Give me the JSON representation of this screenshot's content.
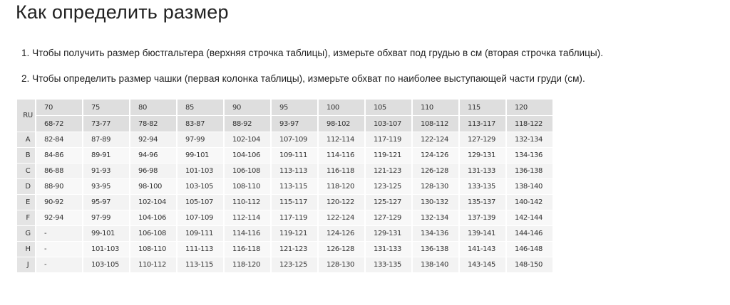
{
  "title": "Как определить размер",
  "steps": [
    "1. Чтобы получить размер бюстгальтера (верхняя строчка таблицы), измерьте обхват под грудью в см (вторая строчка таблицы).",
    "2. Чтобы определить размер чашки (первая колонка таблицы), измерьте обхват по наиболее выступающей части груди (см)."
  ],
  "table": {
    "corner": "RU",
    "sizes": [
      "70",
      "75",
      "80",
      "85",
      "90",
      "95",
      "100",
      "105",
      "110",
      "115",
      "120"
    ],
    "underbust": [
      "68-72",
      "73-77",
      "78-82",
      "83-87",
      "88-92",
      "93-97",
      "98-102",
      "103-107",
      "108-112",
      "113-117",
      "118-122"
    ],
    "rows": [
      {
        "cup": "A",
        "values": [
          "82-84",
          "87-89",
          "92-94",
          "97-99",
          "102-104",
          "107-109",
          "112-114",
          "117-119",
          "122-124",
          "127-129",
          "132-134"
        ]
      },
      {
        "cup": "B",
        "values": [
          "84-86",
          "89-91",
          "94-96",
          "99-101",
          "104-106",
          "109-111",
          "114-116",
          "119-121",
          "124-126",
          "129-131",
          "134-136"
        ]
      },
      {
        "cup": "C",
        "values": [
          "86-88",
          "91-93",
          "96-98",
          "101-103",
          "106-108",
          "113-113",
          "116-118",
          "121-123",
          "126-128",
          "131-133",
          "136-138"
        ]
      },
      {
        "cup": "D",
        "values": [
          "88-90",
          "93-95",
          "98-100",
          "103-105",
          "108-110",
          "113-115",
          "118-120",
          "123-125",
          "128-130",
          "133-135",
          "138-140"
        ]
      },
      {
        "cup": "E",
        "values": [
          "90-92",
          "95-97",
          "102-104",
          "105-107",
          "110-112",
          "115-117",
          "120-122",
          "125-127",
          "130-132",
          "135-137",
          "140-142"
        ]
      },
      {
        "cup": "F",
        "values": [
          "92-94",
          "97-99",
          "104-106",
          "107-109",
          "112-114",
          "117-119",
          "122-124",
          "127-129",
          "132-134",
          "137-139",
          "142-144"
        ]
      },
      {
        "cup": "G",
        "values": [
          "-",
          "99-101",
          "106-108",
          "109-111",
          "114-116",
          "119-121",
          "124-126",
          "129-131",
          "134-136",
          "139-141",
          "144-146"
        ]
      },
      {
        "cup": "H",
        "values": [
          "-",
          "101-103",
          "108-110",
          "111-113",
          "116-118",
          "121-123",
          "126-128",
          "131-133",
          "136-138",
          "141-143",
          "146-148"
        ]
      },
      {
        "cup": "J",
        "values": [
          "-",
          "103-105",
          "110-112",
          "113-115",
          "118-120",
          "123-125",
          "128-130",
          "133-135",
          "138-140",
          "143-145",
          "148-150"
        ]
      }
    ]
  }
}
